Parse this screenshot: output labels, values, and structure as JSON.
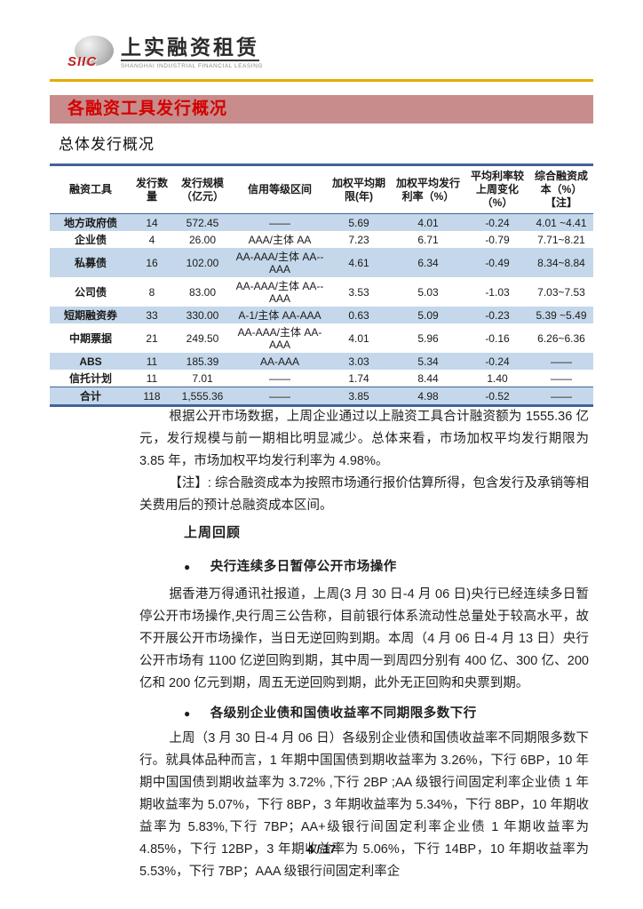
{
  "logo": {
    "emblem_text": "SIIC",
    "company_name_zh": "上实融资租赁",
    "company_name_en": "SHANGHAI INDUSTRIAL FINANCIAL LEASING"
  },
  "banner": {
    "title": "各融资工具发行概况",
    "bg_color": "#c88c8c",
    "text_color": "#d30000"
  },
  "section": {
    "title": "总体发行概况"
  },
  "table": {
    "stripe_color": "#c5d8eb",
    "border_color": "#41639a",
    "headers": [
      "融资工具",
      "发行数量",
      "发行规模（亿元）",
      "信用等级区间",
      "加权平均期限(年)",
      "加权平均发行利率（%）",
      "平均利率较上周变化（%）",
      "综合融资成本（%）【注】"
    ],
    "rows": [
      [
        "地方政府债",
        "14",
        "572.45",
        "——",
        "5.69",
        "4.01",
        "-0.24",
        "4.01 ~4.41"
      ],
      [
        "企业债",
        "4",
        "26.00",
        "AAA/主体 AA",
        "7.23",
        "6.71",
        "-0.79",
        "7.71~8.21"
      ],
      [
        "私募债",
        "16",
        "102.00",
        "AA-AAA/主体 AA--AAA",
        "4.61",
        "6.34",
        "-0.49",
        "8.34~8.84"
      ],
      [
        "公司债",
        "8",
        "83.00",
        "AA-AAA/主体 AA--AAA",
        "3.53",
        "5.03",
        "-1.03",
        "7.03~7.53"
      ],
      [
        "短期融资券",
        "33",
        "330.00",
        "A-1/主体 AA-AAA",
        "0.63",
        "5.09",
        "-0.23",
        "5.39 ~5.49"
      ],
      [
        "中期票据",
        "21",
        "249.50",
        "AA-AAA/主体 AA-AAA",
        "4.01",
        "5.96",
        "-0.16",
        "6.26~6.36"
      ],
      [
        "ABS",
        "11",
        "185.39",
        "AA-AAA",
        "3.03",
        "5.34",
        "-0.24",
        "——"
      ],
      [
        "信托计划",
        "11",
        "7.01",
        "——",
        "1.74",
        "8.44",
        "1.40",
        "——"
      ],
      [
        "合计",
        "118",
        "1,555.36",
        "——",
        "3.85",
        "4.98",
        "-0.52",
        "——"
      ]
    ]
  },
  "paragraphs": {
    "summary": "根据公开市场数据，上周企业通过以上融资工具合计融资额为 1555.36 亿元，发行规模与前一期相比明显减少。总体来看，市场加权平均发行期限为 3.85 年，市场加权平均发行利率为 4.98%。",
    "note": "【注】: 综合融资成本为按照市场通行报价估算所得，包含发行及承销等相关费用后的预计总融资成本区间。"
  },
  "review": {
    "heading": "上周回顾",
    "bullet_char": "●",
    "bullets": [
      {
        "title": "央行连续多日暂停公开市场操作",
        "body": "据香港万得通讯社报道，上周(3 月 30 日-4 月 06 日)央行已经连续多日暂停公开市场操作,央行周三公告称，目前银行体系流动性总量处于较高水平，故不开展公开市场操作，当日无逆回购到期。本周（4 月 06 日-4 月 13 日）央行公开市场有 1100 亿逆回购到期，其中周一到周四分别有 400 亿、300 亿、200 亿和 200 亿元到期，周五无逆回购到期，此外无正回购和央票到期。"
      },
      {
        "title": "各级别企业债和国债收益率不同期限多数下行",
        "body": "上周（3 月 30 日-4 月 06 日）各级别企业债和国债收益率不同期限多数下行。就具体品种而言，1 年期中国国债到期收益率为 3.26%，下行 6BP，10 年期中国国债到期收益率为 3.72% ,下行 2BP ;AA 级银行间固定利率企业债 1 年期收益率为 5.07%，下行 8BP，3 年期收益率为 5.34%，下行 8BP，10 年期收益率为 5.83%,下行 7BP；AA+级银行间固定利率企业债 1 年期收益率为 4.85%，下行 12BP，3 年期收益率为 5.06%，下行 14BP，10 年期收益率为 5.53%，下行 7BP；AAA 级银行间固定利率企"
      }
    ]
  },
  "footer": {
    "page_number": "4 / 17"
  }
}
